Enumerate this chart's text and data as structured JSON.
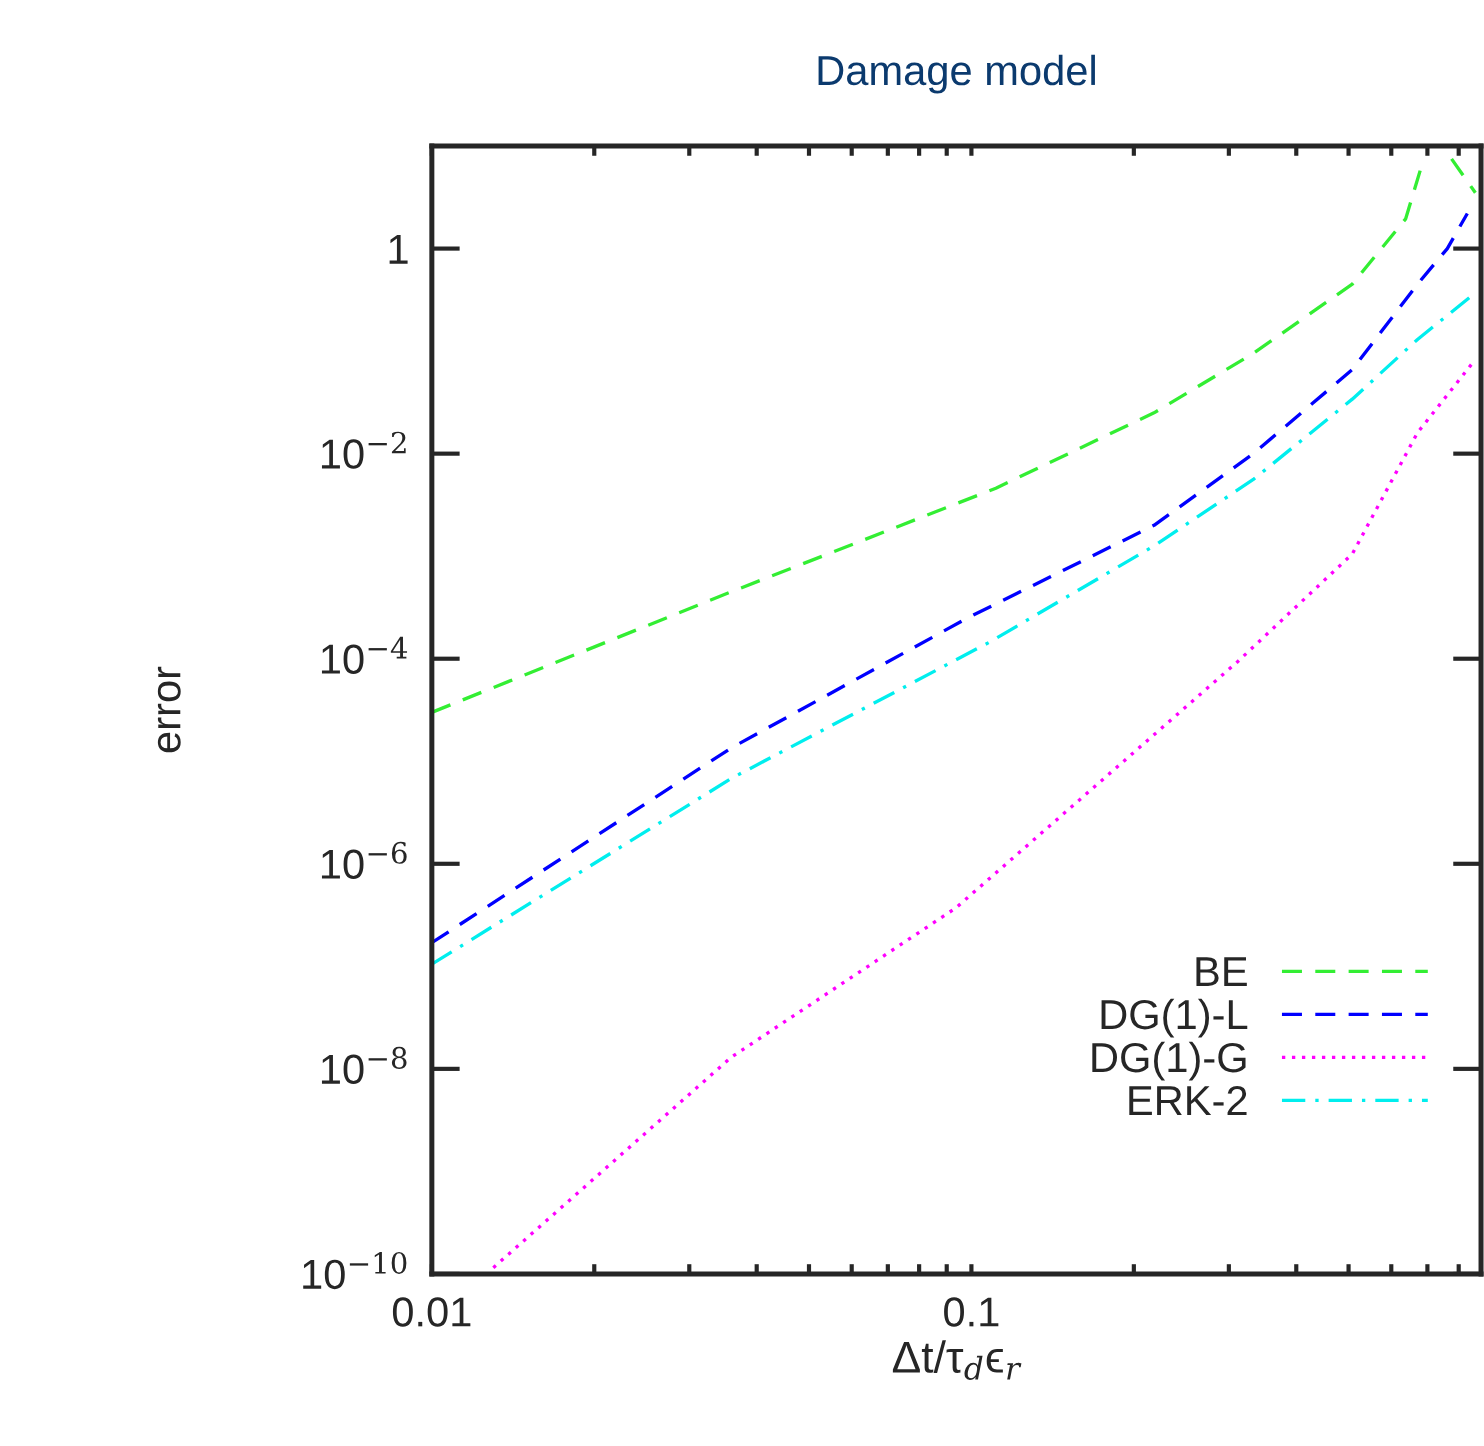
{
  "chart_data": {
    "type": "line",
    "title": "Damage model",
    "xlabel": "Δt/τ$_{d}$ϵ$_{r}$",
    "ylabel": "error",
    "log": "xy",
    "xlim": [
      0.01,
      0.88
    ],
    "ylim": [
      1e-10,
      10
    ],
    "xticks": [
      0.01,
      {
        "value": 0.02,
        "label": null
      },
      {
        "value": 0.03,
        "label": null
      },
      {
        "value": 0.04,
        "label": null
      },
      {
        "value": 0.05,
        "label": null
      },
      {
        "value": 0.06,
        "label": null
      },
      {
        "value": 0.07,
        "label": null
      },
      {
        "value": 0.08,
        "label": null
      },
      {
        "value": 0.09,
        "label": null
      },
      0.1,
      {
        "value": 0.2,
        "label": null
      },
      {
        "value": 0.3,
        "label": null
      },
      {
        "value": 0.4,
        "label": null
      },
      {
        "value": 0.5,
        "label": null
      },
      {
        "value": 0.6,
        "label": null
      },
      {
        "value": 0.7,
        "label": null
      },
      {
        "value": 0.8,
        "label": null
      }
    ],
    "yticks": [
      {
        "value": 1e-10,
        "label": "10$^{−10}$"
      },
      {
        "value": 1e-08,
        "label": "10$^{−8}$"
      },
      {
        "value": 1e-06,
        "label": "10$^{−6}$"
      },
      {
        "value": 0.0001,
        "label": "10$^{−4}$"
      },
      {
        "value": 0.01,
        "label": "10$^{−2}$"
      },
      1
    ],
    "grid": false,
    "legend": "bottom right",
    "marker": "none",
    "series": [
      {
        "name": "BE",
        "color": "#33ee33",
        "line_style": "dashed",
        "x": [
          0.01,
          0.0359,
          0.111,
          0.218,
          0.333,
          0.508,
          0.638,
          0.689,
          0.701,
          0.757,
          0.776,
          0.859
        ],
        "values": [
          3e-05,
          0.00045,
          0.0046,
          0.025,
          0.095,
          0.45,
          1.95,
          7.5,
          null,
          null,
          7.5,
          3.5
        ]
      },
      {
        "name": "DG(1)-L",
        "color": "#0000ff",
        "line_style": "dashed",
        "x": [
          0.01,
          0.0359,
          0.0984,
          0.218,
          0.333,
          0.508,
          0.671,
          0.762,
          0.83
        ],
        "values": [
          1.7e-07,
          1.35e-05,
          0.00025,
          0.002,
          0.01,
          0.066,
          0.45,
          1.0,
          2.2
        ]
      },
      {
        "name": "DG(1)-G",
        "color": "#ff00ff",
        "line_style": "dotted",
        "x": [
          0.013,
          0.0359,
          0.0935,
          0.311,
          0.508,
          0.671,
          0.859
        ],
        "values": [
          1.15e-10,
          1.3e-08,
          3.7e-07,
          9.3e-05,
          0.00105,
          0.016,
          0.083
        ]
      },
      {
        "name": "ERK-2",
        "color": "#00eeee",
        "line_style": "dashdot",
        "x": [
          0.01,
          0.0359,
          0.108,
          0.218,
          0.333,
          0.508,
          0.671,
          0.859
        ],
        "values": [
          1.05e-07,
          6.8e-06,
          0.000145,
          0.00126,
          0.0056,
          0.034,
          0.13,
          0.37
        ]
      }
    ]
  }
}
